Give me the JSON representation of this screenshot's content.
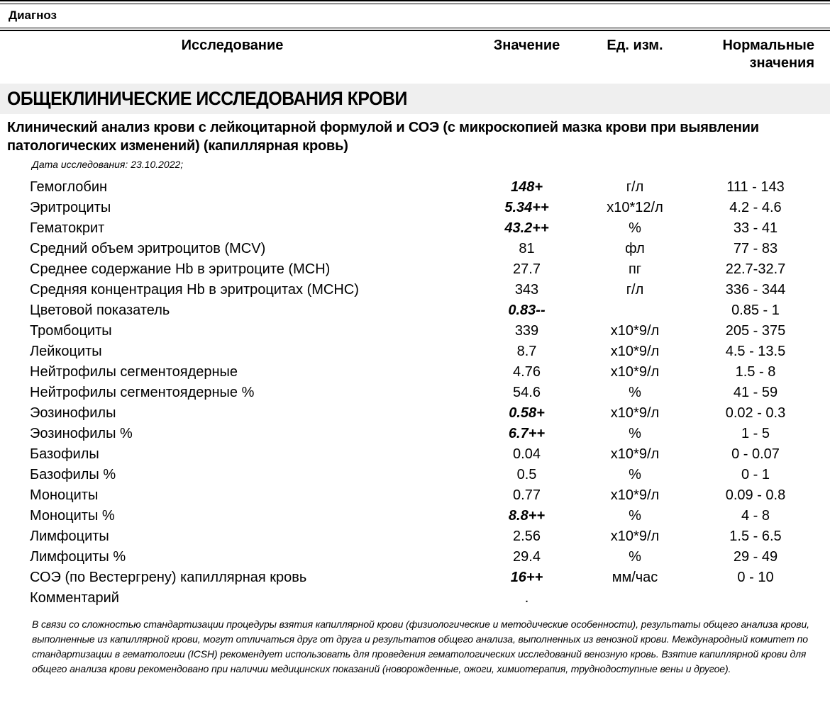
{
  "document": {
    "diagnosis_label": "Диагноз",
    "columns": {
      "test": "Исследование",
      "value": "Значение",
      "unit": "Ед. изм.",
      "normal": "Нормальные значения"
    },
    "section_title": "ОБЩЕКЛИНИЧЕСКИЕ ИССЛЕДОВАНИЯ КРОВИ",
    "panel_title": "Клинический анализ крови с лейкоцитарной формулой и СОЭ (с микроскопией мазка крови при выявлении патологических изменений) (капиллярная кровь)",
    "study_date": "Дата исследования: 23.10.2022;",
    "rows": [
      {
        "name": "Гемоглобин",
        "value": "148+",
        "flag": true,
        "unit": "г/л",
        "normal": "111 - 143"
      },
      {
        "name": "Эритроциты",
        "value": "5.34++",
        "flag": true,
        "unit": "х10*12/л",
        "normal": "4.2 - 4.6"
      },
      {
        "name": "Гематокрит",
        "value": "43.2++",
        "flag": true,
        "unit": "%",
        "normal": "33 - 41"
      },
      {
        "name": "Средний объем эритроцитов (MCV)",
        "value": "81",
        "flag": false,
        "unit": "фл",
        "normal": "77 - 83"
      },
      {
        "name": "Среднее содержание Hb в эритроците (MCH)",
        "value": "27.7",
        "flag": false,
        "unit": "пг",
        "normal": "22.7-32.7"
      },
      {
        "name": "Средняя концентрация Hb в эритроцитах (MCHC)",
        "value": "343",
        "flag": false,
        "unit": "г/л",
        "normal": "336 - 344"
      },
      {
        "name": "Цветовой показатель",
        "value": "0.83--",
        "flag": true,
        "unit": "",
        "normal": "0.85 - 1"
      },
      {
        "name": "Тромбоциты",
        "value": "339",
        "flag": false,
        "unit": "х10*9/л",
        "normal": "205 - 375"
      },
      {
        "name": "Лейкоциты",
        "value": "8.7",
        "flag": false,
        "unit": "х10*9/л",
        "normal": "4.5 - 13.5"
      },
      {
        "name": "Нейтрофилы сегментоядерные",
        "value": "4.76",
        "flag": false,
        "unit": "х10*9/л",
        "normal": "1.5 - 8"
      },
      {
        "name": "Нейтрофилы сегментоядерные %",
        "value": "54.6",
        "flag": false,
        "unit": "%",
        "normal": "41 - 59"
      },
      {
        "name": "Эозинофилы",
        "value": "0.58+",
        "flag": true,
        "unit": "х10*9/л",
        "normal": "0.02 - 0.3"
      },
      {
        "name": "Эозинофилы %",
        "value": "6.7++",
        "flag": true,
        "unit": "%",
        "normal": "1 - 5"
      },
      {
        "name": "Базофилы",
        "value": "0.04",
        "flag": false,
        "unit": "х10*9/л",
        "normal": "0 - 0.07"
      },
      {
        "name": "Базофилы %",
        "value": "0.5",
        "flag": false,
        "unit": "%",
        "normal": "0 - 1"
      },
      {
        "name": "Моноциты",
        "value": "0.77",
        "flag": false,
        "unit": "х10*9/л",
        "normal": "0.09 - 0.8"
      },
      {
        "name": "Моноциты %",
        "value": "8.8++",
        "flag": true,
        "unit": "%",
        "normal": "4 - 8"
      },
      {
        "name": "Лимфоциты",
        "value": "2.56",
        "flag": false,
        "unit": "х10*9/л",
        "normal": "1.5 - 6.5"
      },
      {
        "name": "Лимфоциты %",
        "value": "29.4",
        "flag": false,
        "unit": "%",
        "normal": "29 - 49"
      },
      {
        "name": "СОЭ (по Вестергрену) капиллярная кровь",
        "value": "16++",
        "flag": true,
        "unit": "мм/час",
        "normal": "0 - 10"
      },
      {
        "name": "Комментарий",
        "value": ".",
        "flag": false,
        "unit": "",
        "normal": ""
      }
    ],
    "footnote": "В связи со сложностью стандартизации процедуры взятия капиллярной крови (физиологические и методические особенности), результаты общего анализа крови, выполненные из капиллярной крови, могут отличаться друг от друга и результатов общего анализа, выполненных из венозной крови. Международный комитет по стандартизации в гематологии (ICSH) рекомендует использовать для проведения гематологических исследований венозную кровь. Взятие капиллярной крови для общего анализа крови рекомендовано при наличии медицинских показаний (новорожденные, ожоги, химиотерапия, труднодоступные вены и другое)."
  },
  "colors": {
    "section_band_bg": "#efefef",
    "text": "#000000",
    "rule": "#000000"
  }
}
